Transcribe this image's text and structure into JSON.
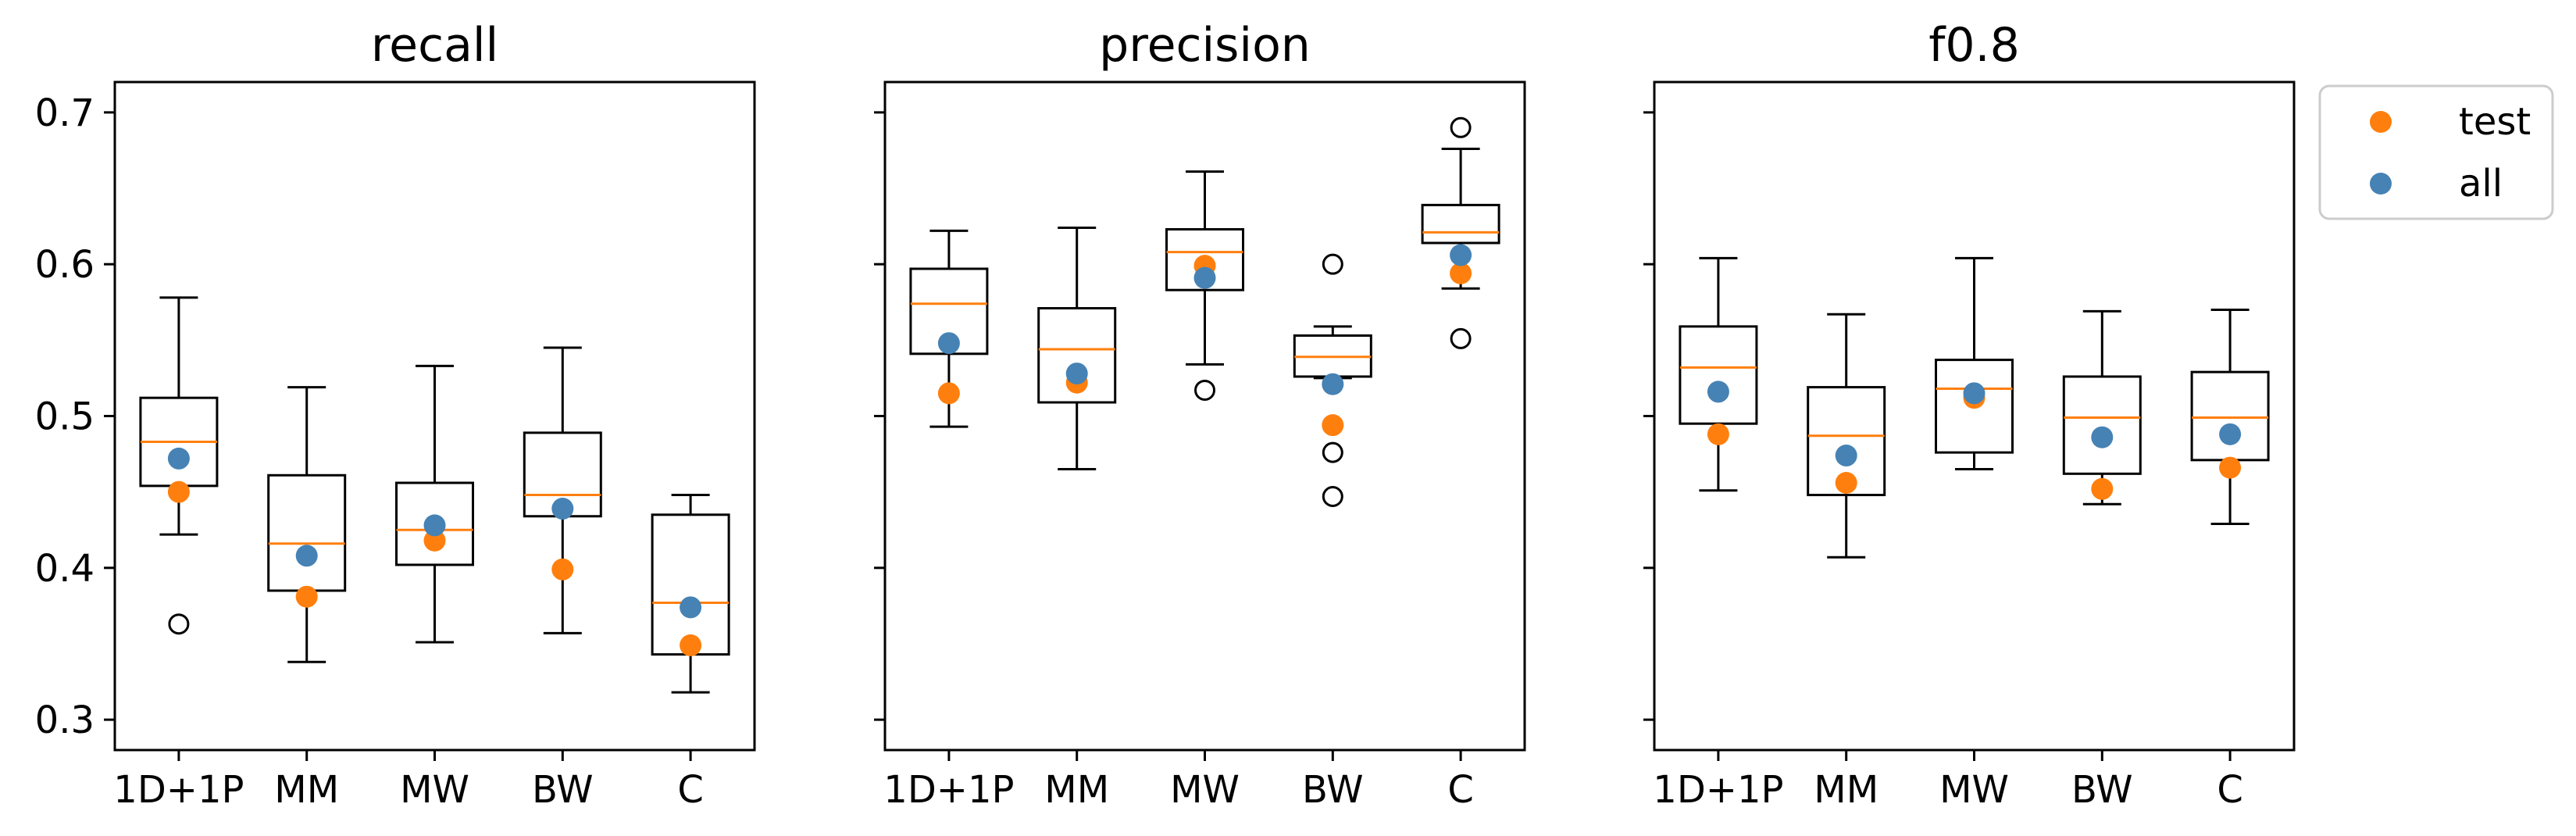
{
  "figure": {
    "legend": {
      "placement": "upper-right outside",
      "entries": [
        {
          "label": "test",
          "color": "#ff7f0e"
        },
        {
          "label": "all",
          "color": "#4682b4"
        }
      ]
    }
  },
  "chart_data": [
    {
      "type": "box",
      "title": "recall",
      "categories": [
        "1D+1P",
        "MM",
        "MW",
        "BW",
        "C"
      ],
      "ylim": [
        0.28,
        0.72
      ],
      "yticks": [
        "0.3",
        "0.4",
        "0.5",
        "0.6",
        "0.7"
      ],
      "boxes": [
        {
          "whisker_low": 0.422,
          "q1": 0.454,
          "median": 0.483,
          "q3": 0.512,
          "whisker_high": 0.578,
          "outliers": [
            0.363
          ]
        },
        {
          "whisker_low": 0.338,
          "q1": 0.385,
          "median": 0.416,
          "q3": 0.461,
          "whisker_high": 0.519,
          "outliers": []
        },
        {
          "whisker_low": 0.351,
          "q1": 0.402,
          "median": 0.425,
          "q3": 0.456,
          "whisker_high": 0.533,
          "outliers": []
        },
        {
          "whisker_low": 0.357,
          "q1": 0.434,
          "median": 0.448,
          "q3": 0.489,
          "whisker_high": 0.545,
          "outliers": []
        },
        {
          "whisker_low": 0.318,
          "q1": 0.343,
          "median": 0.377,
          "q3": 0.435,
          "whisker_high": 0.448,
          "outliers": []
        }
      ],
      "series": [
        {
          "name": "test",
          "values": [
            0.45,
            0.381,
            0.418,
            0.399,
            0.349
          ]
        },
        {
          "name": "all",
          "values": [
            0.472,
            0.408,
            0.428,
            0.439,
            0.374
          ]
        }
      ]
    },
    {
      "type": "box",
      "title": "precision",
      "categories": [
        "1D+1P",
        "MM",
        "MW",
        "BW",
        "C"
      ],
      "ylim": [
        0.28,
        0.72
      ],
      "yticks": [
        "",
        "",
        "",
        "",
        ""
      ],
      "boxes": [
        {
          "whisker_low": 0.493,
          "q1": 0.541,
          "median": 0.574,
          "q3": 0.597,
          "whisker_high": 0.622,
          "outliers": []
        },
        {
          "whisker_low": 0.465,
          "q1": 0.509,
          "median": 0.544,
          "q3": 0.571,
          "whisker_high": 0.624,
          "outliers": []
        },
        {
          "whisker_low": 0.534,
          "q1": 0.583,
          "median": 0.608,
          "q3": 0.623,
          "whisker_high": 0.661,
          "outliers": [
            0.517
          ]
        },
        {
          "whisker_low": 0.525,
          "q1": 0.526,
          "median": 0.539,
          "q3": 0.553,
          "whisker_high": 0.559,
          "outliers": [
            0.6,
            0.476,
            0.447
          ]
        },
        {
          "whisker_low": 0.584,
          "q1": 0.614,
          "median": 0.621,
          "q3": 0.639,
          "whisker_high": 0.676,
          "outliers": [
            0.69,
            0.551
          ]
        }
      ],
      "series": [
        {
          "name": "test",
          "values": [
            0.515,
            0.522,
            0.599,
            0.494,
            0.594
          ]
        },
        {
          "name": "all",
          "values": [
            0.548,
            0.528,
            0.591,
            0.521,
            0.606
          ]
        }
      ]
    },
    {
      "type": "box",
      "title": "f0.8",
      "categories": [
        "1D+1P",
        "MM",
        "MW",
        "BW",
        "C"
      ],
      "ylim": [
        0.28,
        0.72
      ],
      "yticks": [
        "",
        "",
        "",
        "",
        ""
      ],
      "boxes": [
        {
          "whisker_low": 0.451,
          "q1": 0.495,
          "median": 0.532,
          "q3": 0.559,
          "whisker_high": 0.604,
          "outliers": []
        },
        {
          "whisker_low": 0.407,
          "q1": 0.448,
          "median": 0.487,
          "q3": 0.519,
          "whisker_high": 0.567,
          "outliers": []
        },
        {
          "whisker_low": 0.465,
          "q1": 0.476,
          "median": 0.518,
          "q3": 0.537,
          "whisker_high": 0.604,
          "outliers": []
        },
        {
          "whisker_low": 0.442,
          "q1": 0.462,
          "median": 0.499,
          "q3": 0.526,
          "whisker_high": 0.569,
          "outliers": []
        },
        {
          "whisker_low": 0.429,
          "q1": 0.471,
          "median": 0.499,
          "q3": 0.529,
          "whisker_high": 0.57,
          "outliers": []
        }
      ],
      "series": [
        {
          "name": "test",
          "values": [
            0.488,
            0.456,
            0.512,
            0.452,
            0.466
          ]
        },
        {
          "name": "all",
          "values": [
            0.516,
            0.474,
            0.515,
            0.486,
            0.488
          ]
        }
      ]
    }
  ]
}
